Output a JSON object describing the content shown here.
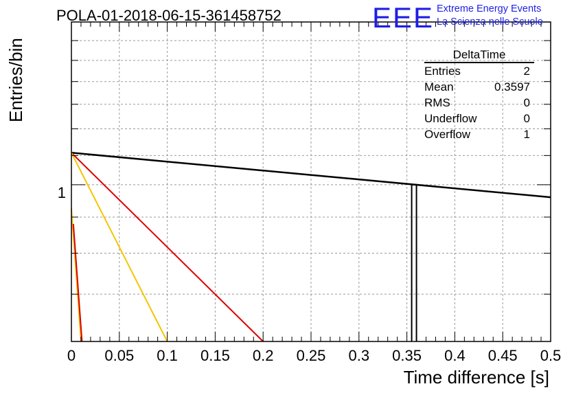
{
  "title": "POLA-01-2018-06-15-361458752",
  "logo": {
    "text": "EEE",
    "line1": "Extreme Energy Events",
    "line2": "La Scienza nelle Scuole",
    "color": "#1e1ee6"
  },
  "stats": {
    "title": "DeltaTime",
    "rows": [
      {
        "label": "Entries",
        "value": "2"
      },
      {
        "label": "Mean",
        "value": "0.3597"
      },
      {
        "label": "RMS",
        "value": "0"
      },
      {
        "label": "Underflow",
        "value": "0"
      },
      {
        "label": "Overflow",
        "value": "1"
      }
    ]
  },
  "chart_data": {
    "type": "line",
    "xlabel": "Time difference [s]",
    "ylabel": "Entries/bin",
    "xlim": [
      0,
      0.5
    ],
    "ylim": [
      0.6,
      1.7
    ],
    "log_y": true,
    "grid": true,
    "x_ticks": [
      "0",
      "0.05",
      "0.1",
      "0.15",
      "0.2",
      "0.25",
      "0.3",
      "0.35",
      "0.4",
      "0.45",
      "0.5"
    ],
    "y_ticks": [
      "1"
    ],
    "histogram": {
      "name": "DeltaTime",
      "bins": [
        {
          "x0": 0.355,
          "x1": 0.36,
          "value": 1
        }
      ]
    },
    "series": [
      {
        "color": "#000000",
        "x": [
          0,
          0.5
        ],
        "y": [
          1.11,
          0.96
        ]
      },
      {
        "color": "#dd0000",
        "x": [
          0,
          0.2
        ],
        "y": [
          1.11,
          0.6
        ]
      },
      {
        "color": "#f5c400",
        "x": [
          0,
          0.1
        ],
        "y": [
          1.11,
          0.6
        ]
      },
      {
        "color": "#f5c400",
        "x": [
          0,
          0.01
        ],
        "y": [
          0.925,
          0.6
        ]
      },
      {
        "color": "#dd0000",
        "x": [
          0.002,
          0.011
        ],
        "y": [
          0.88,
          0.6
        ]
      }
    ],
    "colors": {
      "axis": "#000000",
      "grid": "#999999"
    }
  }
}
